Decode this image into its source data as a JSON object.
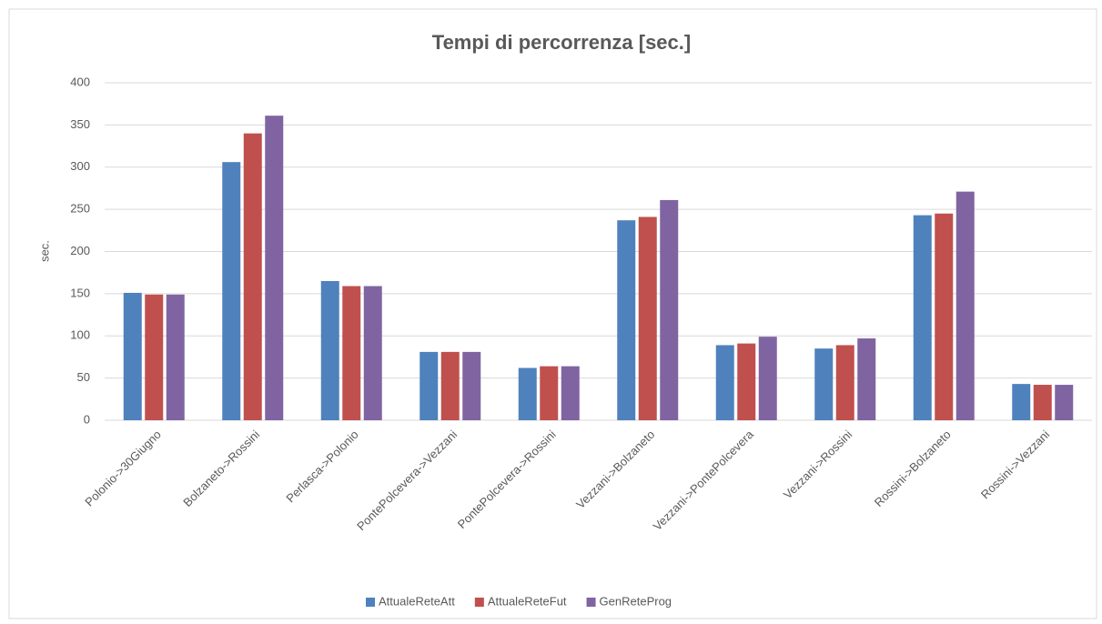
{
  "chart_data": {
    "type": "bar",
    "title": "Tempi di percorrenza [sec.]",
    "y_label": "sec.",
    "categories": [
      "Polonio->30Giugno",
      "Bolzaneto->Rossini",
      "Perlasca->Polonio",
      "PontePolcevera->Vezzani",
      "PontePolcevera->Rossini",
      "Vezzani->Bolzaneto",
      "Vezzani->PontePolcevera",
      "Vezzani->Rossini",
      "Rossini->Bolzaneto",
      "Rossini->Vezzani"
    ],
    "series": [
      {
        "name": "AttualeReteAtt",
        "color": "#4f81bd",
        "values": [
          151,
          306,
          165,
          81,
          62,
          237,
          89,
          85,
          243,
          43
        ]
      },
      {
        "name": "AttualeReteFut",
        "color": "#c0504d",
        "values": [
          149,
          340,
          159,
          81,
          64,
          241,
          91,
          89,
          245,
          42
        ]
      },
      {
        "name": "GenReteProg",
        "color": "#8064a2",
        "values": [
          149,
          361,
          159,
          81,
          64,
          261,
          99,
          97,
          271,
          42
        ]
      }
    ],
    "ylim": [
      0,
      400
    ],
    "yticks": [
      0,
      50,
      100,
      150,
      200,
      250,
      300,
      350,
      400
    ],
    "grid": true,
    "legend": "bottom"
  }
}
